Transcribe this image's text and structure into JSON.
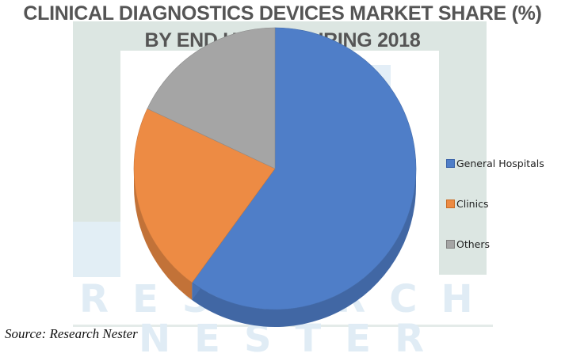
{
  "title": {
    "line1": "CLINICAL DIAGNOSTICS DEVICES MARKET SHARE (%)",
    "line2": "BY END USERS DURING 2018"
  },
  "legend": {
    "items": [
      {
        "label": "General Hospitals",
        "color": "#4f7ec8",
        "border": "#3a63a8"
      },
      {
        "label": "Clinics",
        "color": "#ed8b44",
        "border": "#c96c25"
      },
      {
        "label": "Others",
        "color": "#a5a5a5",
        "border": "#7f7f7f"
      }
    ]
  },
  "source": "Source: Research Nester",
  "watermark": {
    "line1": "RESEARCH",
    "line2": "NESTER"
  },
  "chart_data": {
    "type": "pie",
    "style": "3d",
    "title": "CLINICAL DIAGNOSTICS DEVICES MARKET SHARE (%) BY END USERS DURING 2018",
    "categories": [
      "General Hospitals",
      "Clinics",
      "Others"
    ],
    "values": [
      60,
      22,
      18
    ],
    "colors": [
      "#4f7ec8",
      "#ed8b44",
      "#a5a5a5"
    ],
    "data_labels": false,
    "legend_position": "right",
    "start_angle_deg": 0,
    "direction": "clockwise"
  }
}
